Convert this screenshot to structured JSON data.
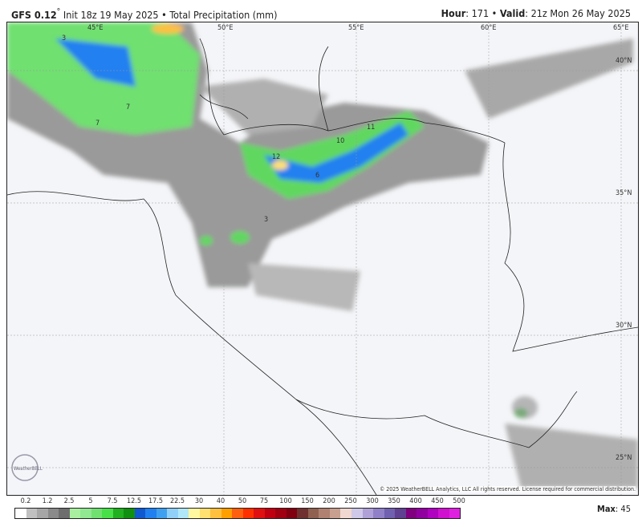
{
  "header": {
    "model": "GFS 0.12",
    "degree": "°",
    "init": " Init 18z 19 May 2025",
    "product": " • Total Precipitation (mm)",
    "hour_label": "Hour",
    "hour_value": ": 171 • ",
    "valid_label": "Valid",
    "valid_value": ": 21z Mon 26 May 2025"
  },
  "map": {
    "lon_labels": [
      "45°E",
      "50°E",
      "55°E",
      "60°E",
      "65°E"
    ],
    "lat_labels": [
      "40°N",
      "35°N",
      "30°N",
      "25°N"
    ],
    "contour_labels": [
      "3",
      "7",
      "7",
      "11",
      "10",
      "6",
      "3",
      "12"
    ],
    "copyright": "© 2025 WeatherBELL Analytics, LLC All rights reserved. License required for commercial distribution.",
    "logo_text": "WeatherBELL"
  },
  "legend": {
    "labels": [
      "0.2",
      "1.2",
      "2.5",
      "5",
      "7.5",
      "12.5",
      "17.5",
      "22.5",
      "30",
      "40",
      "50",
      "75",
      "100",
      "150",
      "200",
      "250",
      "300",
      "350",
      "400",
      "450",
      "500"
    ],
    "colors": [
      "#ffffff",
      "#c0c0c0",
      "#a6a6a6",
      "#8a8a8a",
      "#6e6e6e",
      "#a8f0a0",
      "#90e890",
      "#70e070",
      "#48e048",
      "#20b020",
      "#109010",
      "#1058d0",
      "#2080f0",
      "#40a0f0",
      "#90d0f8",
      "#b0e8f8",
      "#fff8a0",
      "#ffe070",
      "#ffc040",
      "#ffa000",
      "#ff6010",
      "#ff3000",
      "#e01010",
      "#c00010",
      "#a00010",
      "#800010",
      "#703030",
      "#906050",
      "#b08070",
      "#c8a090",
      "#f0d8d0",
      "#d0c8e8",
      "#b0a0d8",
      "#9080c8",
      "#7060b0",
      "#604090",
      "#800080",
      "#9000a0",
      "#b000c0",
      "#d010d0",
      "#e020e0"
    ],
    "max_label": "Max",
    "max_value": ": 45"
  }
}
